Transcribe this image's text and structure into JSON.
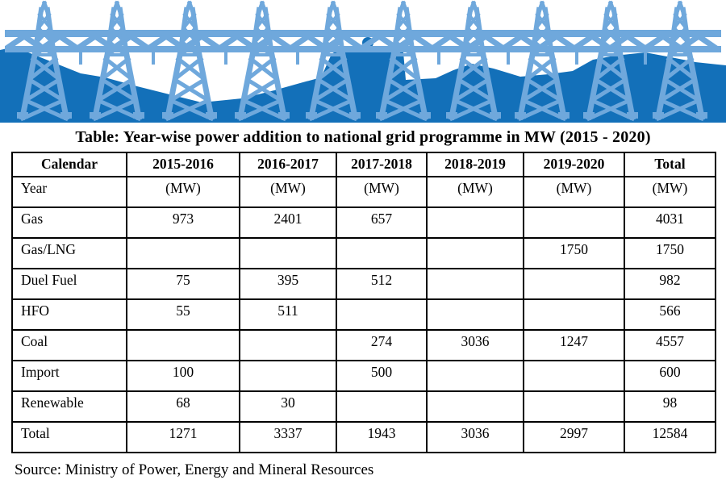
{
  "banner": {
    "description": "row of light blue transmission towers connected by a truss, over dark blue hills",
    "tower_color": "#6FA8DC",
    "hill_color": "#1370B9"
  },
  "title": "Table: Year-wise power addition to national grid programme in MW (2015 - 2020)",
  "table": {
    "columns": [
      "Calendar",
      "2015-2016",
      "2016-2017",
      "2017-2018",
      "2018-2019",
      "2019-2020",
      "Total"
    ],
    "units_row": [
      "Year",
      "(MW)",
      "(MW)",
      "(MW)",
      "(MW)",
      "(MW)",
      "(MW)"
    ],
    "rows": [
      {
        "label": "Gas",
        "values": [
          "973",
          "2401",
          "657",
          "",
          "",
          "4031"
        ]
      },
      {
        "label": "Gas/LNG",
        "values": [
          "",
          "",
          "",
          "",
          "1750",
          "1750"
        ]
      },
      {
        "label": "Duel Fuel",
        "values": [
          "75",
          "395",
          "512",
          "",
          "",
          "982"
        ]
      },
      {
        "label": "HFO",
        "values": [
          "55",
          "511",
          "",
          "",
          "",
          "566"
        ]
      },
      {
        "label": "Coal",
        "values": [
          "",
          "",
          "274",
          "3036",
          "1247",
          "4557"
        ]
      },
      {
        "label": "Import",
        "values": [
          "100",
          "",
          "500",
          "",
          "",
          "600"
        ]
      },
      {
        "label": "Renewable",
        "values": [
          "68",
          "30",
          "",
          "",
          "",
          "98"
        ]
      },
      {
        "label": "Total",
        "values": [
          "1271",
          "3337",
          "1943",
          "3036",
          "2997",
          "12584"
        ]
      }
    ]
  },
  "source": "Source: Ministry of Power, Energy and Mineral Resources"
}
